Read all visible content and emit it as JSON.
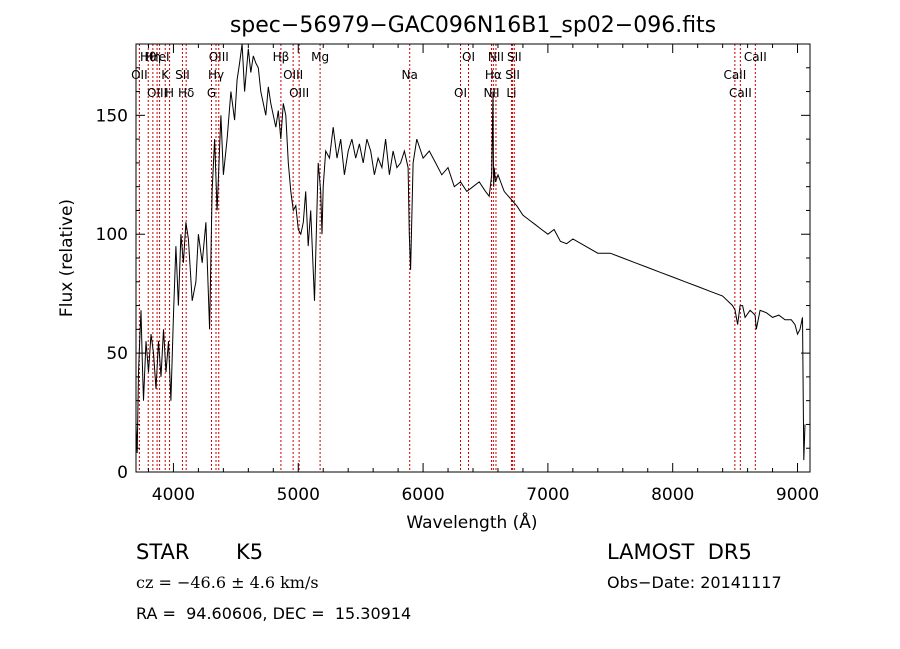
{
  "chart_data": {
    "type": "line",
    "title": "spec−56979−GAC096N16B1_sp02−096.fits",
    "xlabel": "Wavelength (Å)",
    "ylabel": "Flux (relative)",
    "xlim": [
      3700,
      9100
    ],
    "ylim": [
      0,
      180
    ],
    "xticks": [
      4000,
      5000,
      6000,
      7000,
      8000,
      9000
    ],
    "yticks": [
      0,
      50,
      100,
      150
    ],
    "grid": false,
    "x": [
      3700,
      3710,
      3720,
      3730,
      3740,
      3750,
      3760,
      3780,
      3800,
      3820,
      3840,
      3860,
      3880,
      3900,
      3920,
      3940,
      3960,
      3980,
      4000,
      4020,
      4040,
      4060,
      4080,
      4100,
      4120,
      4150,
      4180,
      4200,
      4230,
      4260,
      4290,
      4310,
      4330,
      4350,
      4380,
      4400,
      4430,
      4460,
      4490,
      4510,
      4530,
      4550,
      4570,
      4600,
      4620,
      4640,
      4660,
      4680,
      4700,
      4720,
      4740,
      4760,
      4780,
      4800,
      4820,
      4840,
      4860,
      4880,
      4900,
      4920,
      4940,
      4960,
      4980,
      5000,
      5020,
      5040,
      5060,
      5080,
      5100,
      5130,
      5160,
      5180,
      5190,
      5200,
      5220,
      5250,
      5280,
      5310,
      5340,
      5370,
      5400,
      5430,
      5460,
      5490,
      5520,
      5550,
      5580,
      5610,
      5640,
      5670,
      5700,
      5730,
      5760,
      5790,
      5820,
      5850,
      5880,
      5890,
      5900,
      5920,
      5950,
      6000,
      6050,
      6100,
      6150,
      6200,
      6250,
      6300,
      6350,
      6400,
      6450,
      6500,
      6530,
      6550,
      6560,
      6563,
      6566,
      6570,
      6580,
      6600,
      6650,
      6700,
      6750,
      6800,
      6850,
      6900,
      6950,
      7000,
      7050,
      7100,
      7150,
      7200,
      7300,
      7400,
      7500,
      7600,
      7700,
      7800,
      7900,
      8000,
      8100,
      8200,
      8300,
      8400,
      8480,
      8500,
      8520,
      8540,
      8560,
      8580,
      8620,
      8660,
      8670,
      8700,
      8750,
      8800,
      8850,
      8900,
      8950,
      8980,
      9000,
      9020,
      9040,
      9050,
      9060
    ],
    "series": [
      {
        "values": [
          20,
          8,
          42,
          55,
          68,
          48,
          30,
          55,
          42,
          58,
          50,
          35,
          55,
          40,
          60,
          42,
          55,
          30,
          65,
          95,
          70,
          100,
          88,
          105,
          98,
          72,
          80,
          100,
          88,
          105,
          60,
          118,
          140,
          110,
          150,
          125,
          140,
          160,
          148,
          165,
          172,
          180,
          160,
          178,
          168,
          175,
          172,
          170,
          160,
          155,
          150,
          162,
          155,
          150,
          145,
          152,
          140,
          155,
          150,
          130,
          118,
          110,
          112,
          102,
          100,
          105,
          118,
          95,
          110,
          72,
          130,
          118,
          100,
          120,
          135,
          132,
          145,
          132,
          140,
          125,
          135,
          140,
          132,
          138,
          130,
          140,
          135,
          125,
          132,
          128,
          140,
          125,
          135,
          128,
          130,
          135,
          128,
          100,
          85,
          130,
          140,
          132,
          135,
          130,
          125,
          128,
          120,
          122,
          118,
          120,
          122,
          118,
          116,
          125,
          160,
          135,
          120,
          128,
          122,
          125,
          118,
          115,
          112,
          108,
          106,
          104,
          102,
          100,
          102,
          97,
          96,
          98,
          95,
          92,
          92,
          90,
          88,
          86,
          84,
          82,
          80,
          78,
          76,
          74,
          70,
          68,
          62,
          70,
          70,
          65,
          68,
          66,
          60,
          68,
          67,
          65,
          66,
          64,
          64,
          62,
          58,
          60,
          65,
          5,
          20
        ]
      }
    ],
    "lines": [
      {
        "label": "Hθ",
        "x": 3798
      },
      {
        "label": "OII",
        "x": 3727
      },
      {
        "label": "OIII",
        "x": 3869
      },
      {
        "label": "Hη",
        "x": 3835
      },
      {
        "label": "K",
        "x": 3934
      },
      {
        "label": "H",
        "x": 3969
      },
      {
        "label": "HeI",
        "x": 3889
      },
      {
        "label": "SII",
        "x": 4072
      },
      {
        "label": "Hδ",
        "x": 4102
      },
      {
        "label": "OIII",
        "x": 4363
      },
      {
        "label": "Hγ",
        "x": 4341
      },
      {
        "label": "G",
        "x": 4305
      },
      {
        "label": "Hβ",
        "x": 4861
      },
      {
        "label": "OIII",
        "x": 4959
      },
      {
        "label": "OIII",
        "x": 5007
      },
      {
        "label": "Mg",
        "x": 5175
      },
      {
        "label": "Na",
        "x": 5893
      },
      {
        "label": "OI",
        "x": 6300
      },
      {
        "label": "OI",
        "x": 6364
      },
      {
        "label": "Hα",
        "x": 6563
      },
      {
        "label": "NII",
        "x": 6548
      },
      {
        "label": "NII",
        "x": 6584
      },
      {
        "label": "SII",
        "x": 6717
      },
      {
        "label": "Li",
        "x": 6708
      },
      {
        "label": "SII",
        "x": 6731
      },
      {
        "label": "CaII",
        "x": 8498
      },
      {
        "label": "CaII",
        "x": 8542
      },
      {
        "label": "CaII",
        "x": 8662
      }
    ],
    "line_color": "#cc0000"
  },
  "info": {
    "class_label": "STAR",
    "subclass": "K5",
    "survey": "LAMOST  DR5",
    "cz_text": "cz = −46.6 ± 4.6 km/s",
    "obs_date": "Obs−Date: 20141117",
    "coords": "RA =  94.60606, DEC =  15.30914"
  }
}
